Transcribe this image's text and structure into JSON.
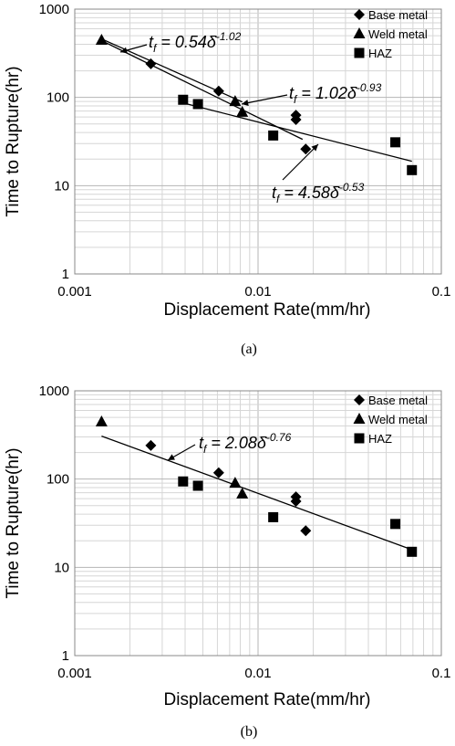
{
  "chart_data": [
    {
      "type": "scatter",
      "panel_label": "(a)",
      "xlabel": "Displacement Rate(mm/hr)",
      "ylabel": "Time to Rupture(hr)",
      "xscale": "log",
      "yscale": "log",
      "xlim": [
        0.001,
        0.1
      ],
      "ylim": [
        1,
        1000
      ],
      "x_ticks": [
        "0.001",
        "0.01",
        "0.1"
      ],
      "y_ticks": [
        "1",
        "10",
        "100",
        "1000"
      ],
      "grid": true,
      "legend_position": "top-right",
      "series": [
        {
          "name": "Base metal",
          "marker": "diamond",
          "points": [
            [
              0.0026,
              240
            ],
            [
              0.0061,
              118
            ],
            [
              0.0161,
              63
            ],
            [
              0.0161,
              56
            ],
            [
              0.0182,
              26
            ]
          ]
        },
        {
          "name": "Weld metal",
          "marker": "triangle",
          "points": [
            [
              0.0014,
              445
            ],
            [
              0.0075,
              90
            ],
            [
              0.0082,
              68
            ]
          ]
        },
        {
          "name": "HAZ",
          "marker": "square",
          "points": [
            [
              0.0039,
              94
            ],
            [
              0.0047,
              84
            ],
            [
              0.0121,
              37
            ],
            [
              0.0561,
              31
            ],
            [
              0.0691,
              15
            ]
          ]
        }
      ],
      "fits": [
        {
          "coef": 0.54,
          "exp": -1.02,
          "xrange": [
            0.0014,
            0.0175
          ]
        },
        {
          "coef": 1.02,
          "exp": -0.93,
          "xrange": [
            0.0014,
            0.0082
          ]
        },
        {
          "coef": 4.58,
          "exp": -0.53,
          "xrange": [
            0.0039,
            0.0691
          ]
        }
      ],
      "annotations": [
        {
          "prefix": "t",
          "sub": "f",
          "mid": " = 0.54δ",
          "sup": "-1.02"
        },
        {
          "prefix": "t",
          "sub": "f",
          "mid": " = 1.02δ",
          "sup": "-0.93"
        },
        {
          "prefix": "t",
          "sub": "f",
          "mid": " = 4.58δ",
          "sup": "-0.53"
        }
      ]
    },
    {
      "type": "scatter",
      "panel_label": "(b)",
      "xlabel": "Displacement Rate(mm/hr)",
      "ylabel": "Time to Rupture(hr)",
      "xscale": "log",
      "yscale": "log",
      "xlim": [
        0.001,
        0.1
      ],
      "ylim": [
        1,
        1000
      ],
      "x_ticks": [
        "0.001",
        "0.01",
        "0.1"
      ],
      "y_ticks": [
        "1",
        "10",
        "100",
        "1000"
      ],
      "grid": true,
      "legend_position": "top-right",
      "series": [
        {
          "name": "Base metal",
          "marker": "diamond",
          "points": [
            [
              0.0026,
              240
            ],
            [
              0.0061,
              118
            ],
            [
              0.0161,
              63
            ],
            [
              0.0161,
              56
            ],
            [
              0.0182,
              26
            ]
          ]
        },
        {
          "name": "Weld metal",
          "marker": "triangle",
          "points": [
            [
              0.0014,
              445
            ],
            [
              0.0075,
              90
            ],
            [
              0.0082,
              68
            ]
          ]
        },
        {
          "name": "HAZ",
          "marker": "square",
          "points": [
            [
              0.0039,
              94
            ],
            [
              0.0047,
              84
            ],
            [
              0.0121,
              37
            ],
            [
              0.0561,
              31
            ],
            [
              0.0691,
              15
            ]
          ]
        }
      ],
      "fits": [
        {
          "coef": 2.08,
          "exp": -0.76,
          "xrange": [
            0.0014,
            0.0691
          ]
        }
      ],
      "annotations": [
        {
          "prefix": "t",
          "sub": "f",
          "mid": " = 2.08δ",
          "sup": "-0.76"
        }
      ]
    }
  ]
}
